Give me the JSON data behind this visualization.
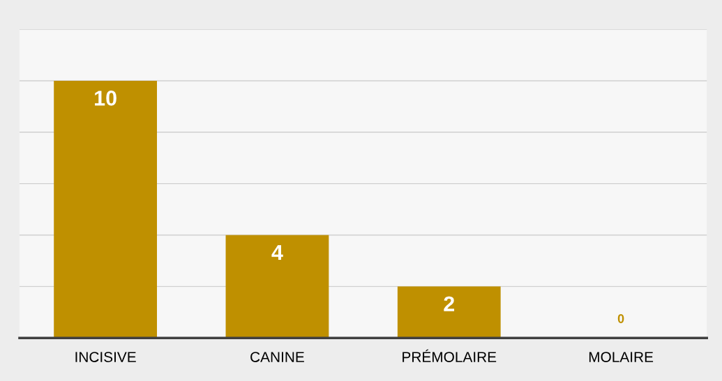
{
  "chart_data": {
    "type": "bar",
    "categories": [
      "INCISIVE",
      "CANINE",
      "PRÉMOLAIRE",
      "MOLAIRE"
    ],
    "values": [
      10,
      4,
      2,
      0
    ],
    "color": "#bf9000",
    "data_labels": true,
    "ylim": [
      0,
      12
    ],
    "yticks": [
      {
        "value": 0,
        "label": null
      },
      {
        "value": 2,
        "label": null
      },
      {
        "value": 4,
        "label": null
      },
      {
        "value": 6,
        "label": null
      },
      {
        "value": 8,
        "label": null
      },
      {
        "value": 10,
        "label": null
      },
      {
        "value": 12,
        "label": null
      }
    ],
    "grid": "y",
    "tick_labels": "x"
  }
}
